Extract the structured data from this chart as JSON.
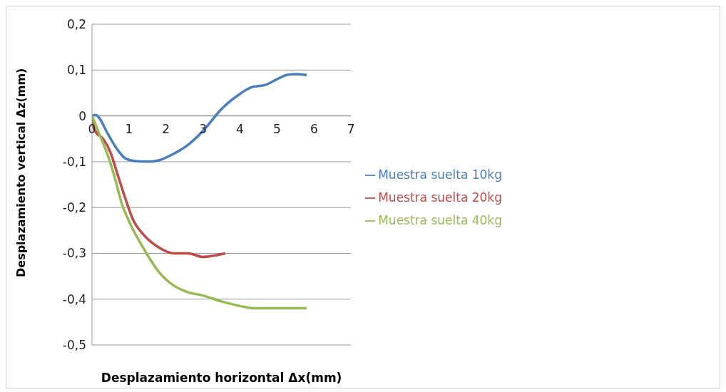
{
  "chart_data": {
    "type": "line",
    "xlabel": "Desplazamiento horizontal Δx(mm)",
    "ylabel": "Desplazamiento vertical Δz(mm)",
    "xlim": [
      0,
      7
    ],
    "xticks": [
      0,
      1,
      2,
      3,
      4,
      5,
      6,
      7
    ],
    "ylim": [
      -0.5,
      0.2
    ],
    "yticks": [
      {
        "value": -0.5,
        "label": "-0,5"
      },
      {
        "value": -0.4,
        "label": "-0,4"
      },
      {
        "value": -0.3,
        "label": "-0,3"
      },
      {
        "value": -0.2,
        "label": "-0,2"
      },
      {
        "value": -0.1,
        "label": "-0,1"
      },
      0,
      {
        "value": 0.1,
        "label": "0,1"
      },
      {
        "value": 0.2,
        "label": "0,2"
      }
    ],
    "grid": "y",
    "legend": "right",
    "marker": "none",
    "line_style": "solid",
    "series": [
      {
        "name": "Muestra suelta 10kg",
        "color": "#4a7ebb",
        "x": [
          0,
          0.1,
          0.2,
          0.4,
          0.7,
          0.9,
          1.1,
          1.5,
          1.8,
          2.2,
          2.6,
          3.0,
          3.5,
          4.0,
          4.3,
          4.7,
          5.0,
          5.3,
          5.5,
          5.8
        ],
        "values": [
          0,
          0.002,
          -0.005,
          -0.035,
          -0.075,
          -0.093,
          -0.098,
          -0.1,
          -0.097,
          -0.083,
          -0.063,
          -0.033,
          0.015,
          0.048,
          0.062,
          0.068,
          0.08,
          0.09,
          0.091,
          0.089
        ]
      },
      {
        "name": "Muestra suelta 20kg",
        "color": "#be4b48",
        "x": [
          0,
          0.03,
          0.1,
          0.3,
          0.5,
          0.7,
          0.9,
          1.1,
          1.4,
          1.8,
          2.2,
          2.6,
          3.0,
          3.3,
          3.6
        ],
        "values": [
          0,
          -0.02,
          -0.035,
          -0.05,
          -0.08,
          -0.13,
          -0.18,
          -0.225,
          -0.26,
          -0.287,
          -0.3,
          -0.3,
          -0.308,
          -0.305,
          -0.3
        ]
      },
      {
        "name": "Muestra suelta 40kg",
        "color": "#98b954",
        "x": [
          0,
          0.2,
          0.4,
          0.6,
          0.8,
          1.0,
          1.4,
          1.8,
          2.2,
          2.6,
          3.0,
          3.5,
          4.0,
          4.4,
          5.0,
          5.8
        ],
        "values": [
          0,
          -0.04,
          -0.08,
          -0.13,
          -0.19,
          -0.23,
          -0.29,
          -0.34,
          -0.37,
          -0.385,
          -0.392,
          -0.405,
          -0.415,
          -0.42,
          -0.42,
          -0.42
        ]
      }
    ]
  }
}
